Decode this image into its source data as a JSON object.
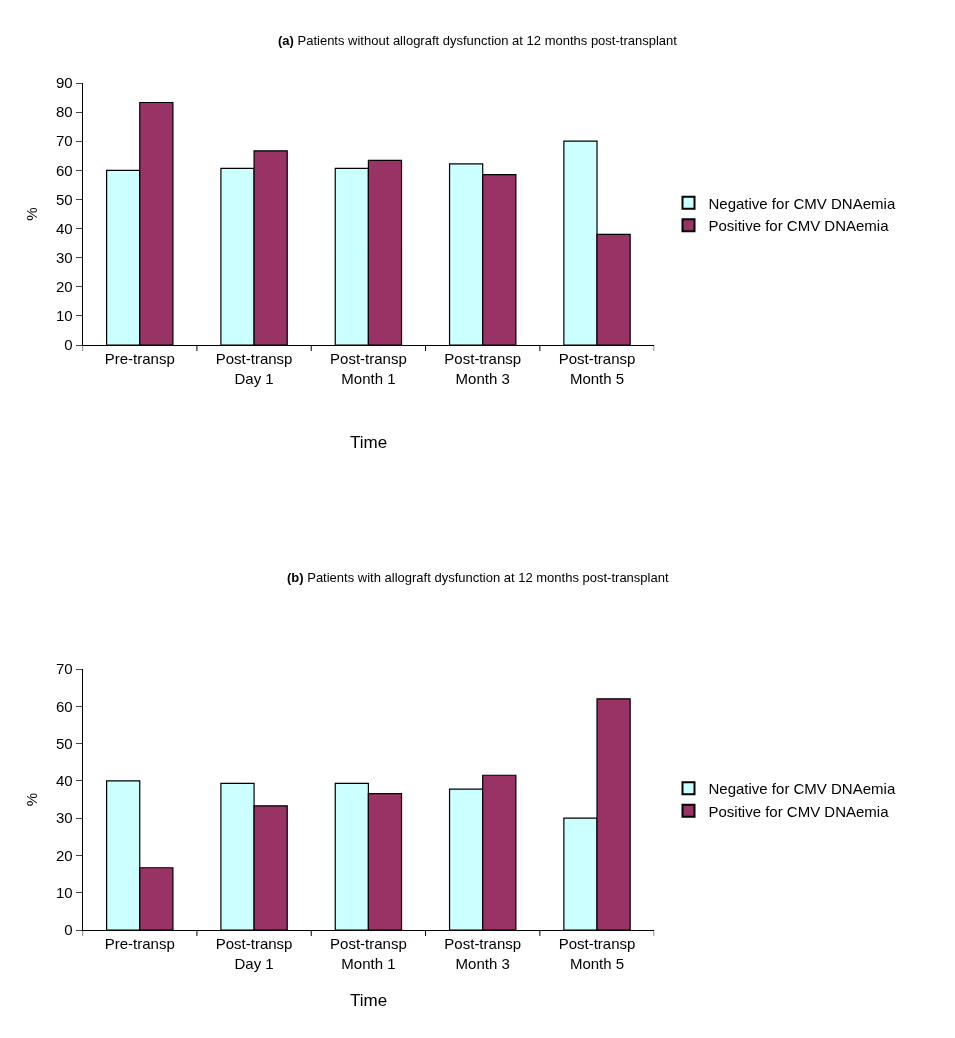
{
  "chart_data": [
    {
      "type": "bar",
      "title": "(a) Patients without allograft dysfunction at 12 months post-transplant",
      "xlabel": "Time",
      "ylabel": "%",
      "categories": [
        "Pre-transp",
        "Post-transp\nDay 1",
        "Post-transp\nMonth 1",
        "Post-transp\nMonth 3",
        "Post-transp\nMonth 5"
      ],
      "series": [
        {
          "name": "Negative for CMV DNAemia",
          "color": "#ccffff",
          "values": [
            60,
            60.7,
            60.7,
            62.2,
            70
          ]
        },
        {
          "name": "Positive for CMV DNAemia",
          "color": "#993366",
          "values": [
            83.3,
            66.7,
            63.4,
            58.5,
            38
          ]
        }
      ],
      "ylim": [
        0,
        90
      ],
      "yticks": [
        0,
        10,
        20,
        30,
        40,
        50,
        60,
        70,
        80,
        90
      ],
      "grid": false,
      "legend": "right"
    },
    {
      "type": "bar",
      "title": "(b) Patients with allograft dysfunction at 12 months post-transplant",
      "xlabel": "Time",
      "ylabel": "%",
      "categories": [
        "Pre-transp",
        "Post-transp\nDay 1",
        "Post-transp\nMonth 1",
        "Post-transp\nMonth 3",
        "Post-transp\nMonth 5"
      ],
      "series": [
        {
          "name": "Negative for CMV DNAemia",
          "color": "#ccffff",
          "values": [
            40,
            39.3,
            39.3,
            37.8,
            30
          ]
        },
        {
          "name": "Positive for CMV DNAemia",
          "color": "#993366",
          "values": [
            16.7,
            33.3,
            36.6,
            41.5,
            62
          ]
        }
      ],
      "ylim": [
        0,
        70
      ],
      "yticks": [
        0,
        10,
        20,
        30,
        40,
        50,
        60,
        70
      ],
      "grid": false,
      "legend": "right"
    }
  ]
}
